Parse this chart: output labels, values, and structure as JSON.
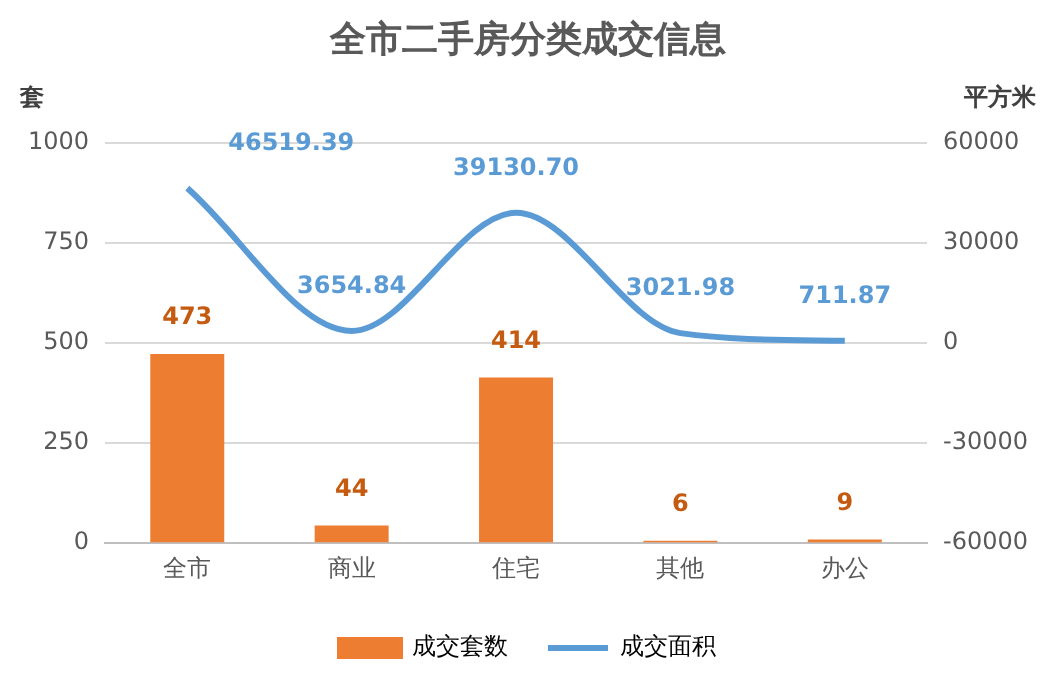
{
  "chart_data": {
    "type": "bar",
    "title": "全市二手房分类成交信息",
    "ylabel": "套",
    "y2label": "平方米",
    "categories": [
      "全市",
      "商业",
      "住宅",
      "其他",
      "办公"
    ],
    "series": [
      {
        "name": "成交套数",
        "color": "#ed7d31",
        "values": [
          473,
          44,
          414,
          6,
          9
        ]
      },
      {
        "name": "成交面积",
        "type": "line",
        "axis": "y2",
        "color": "#5b9bd5",
        "values": [
          46519.39,
          3654.84,
          39130.7,
          3021.98,
          711.87
        ],
        "value_labels": [
          "46519.39",
          "3654.84",
          "39130.70",
          "3021.98",
          "711.87"
        ]
      }
    ],
    "ylim": [
      0,
      1000
    ],
    "yticks": [
      0,
      250,
      500,
      750,
      1000
    ],
    "y2lim": [
      -60000,
      60000
    ],
    "y2ticks": [
      -60000,
      -30000,
      0,
      30000,
      60000
    ],
    "grid": "y",
    "legend": "bottom",
    "marker": "none",
    "line_style": "solid",
    "data_labels": true
  }
}
